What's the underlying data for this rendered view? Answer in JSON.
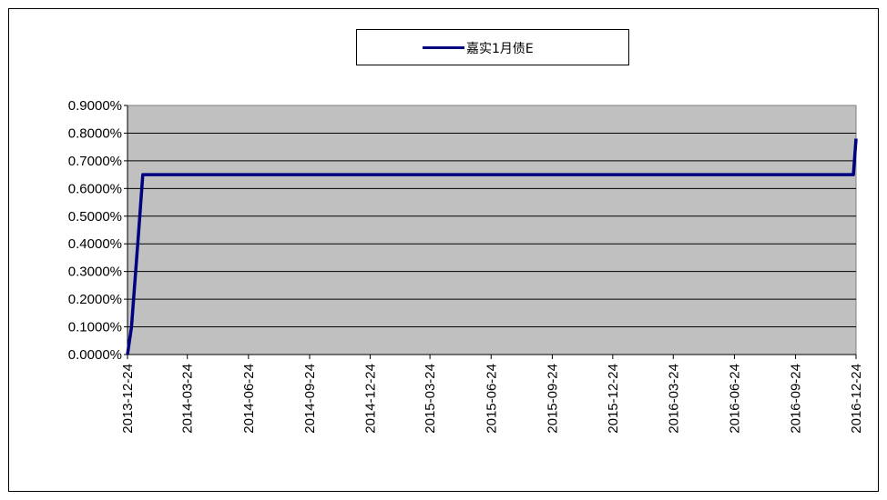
{
  "chart_data": {
    "type": "line",
    "legend_position": "top-center",
    "grid": true,
    "background_color": "#c0c0c0",
    "series": [
      {
        "name": "嘉实1月债E",
        "color": "#000080",
        "points": [
          [
            "2013-12-24",
            0.0
          ],
          [
            "2013-12-30",
            0.1
          ],
          [
            "2014-01-10",
            0.45
          ],
          [
            "2014-01-16",
            0.65
          ],
          [
            "2016-12-20",
            0.65
          ],
          [
            "2016-12-24",
            0.78
          ]
        ]
      }
    ],
    "x_range": [
      "2013-12-24",
      "2016-12-24"
    ],
    "x_ticks": [
      "2013-12-24",
      "2014-03-24",
      "2014-06-24",
      "2014-09-24",
      "2014-12-24",
      "2015-03-24",
      "2015-06-24",
      "2015-09-24",
      "2015-12-24",
      "2016-03-24",
      "2016-06-24",
      "2016-09-24",
      "2016-12-24"
    ],
    "ylim": [
      0,
      0.9
    ],
    "y_ticks": [
      "0.0000%",
      "0.1000%",
      "0.2000%",
      "0.3000%",
      "0.4000%",
      "0.5000%",
      "0.6000%",
      "0.7000%",
      "0.8000%",
      "0.9000%"
    ]
  }
}
